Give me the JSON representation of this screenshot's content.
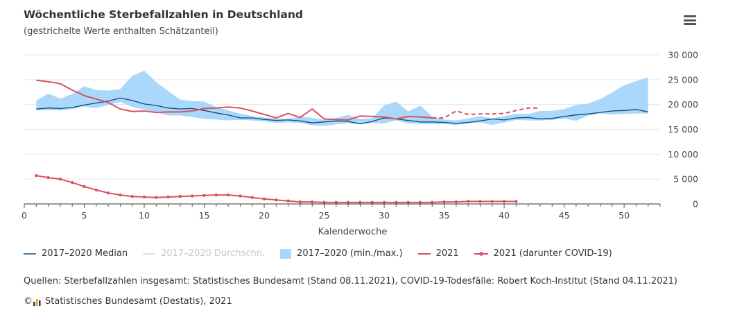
{
  "header": {
    "title": "Wöchentliche Sterbefallzahlen in Deutschland",
    "subtitle": "(gestrichelte Werte enthalten Schätzanteil)",
    "menu_icon": "hamburger-menu-icon"
  },
  "chart_data": {
    "type": "line",
    "xlabel": "Kalenderwoche",
    "ylabel": "",
    "xlim": [
      0,
      53
    ],
    "ylim": [
      0,
      30000
    ],
    "x_ticks": [
      0,
      5,
      10,
      15,
      20,
      25,
      30,
      35,
      40,
      45,
      50
    ],
    "y_ticks": [
      0,
      5000,
      10000,
      15000,
      20000,
      25000,
      30000
    ],
    "y_tick_labels": [
      "0",
      "5 000",
      "10 000",
      "15 000",
      "20 000",
      "25 000",
      "30 000"
    ],
    "legend_position": "bottom",
    "grid": true,
    "weeks": [
      1,
      2,
      3,
      4,
      5,
      6,
      7,
      8,
      9,
      10,
      11,
      12,
      13,
      14,
      15,
      16,
      17,
      18,
      19,
      20,
      21,
      22,
      23,
      24,
      25,
      26,
      27,
      28,
      29,
      30,
      31,
      32,
      33,
      34,
      35,
      36,
      37,
      38,
      39,
      40,
      41,
      42,
      43,
      44,
      45,
      46,
      47,
      48,
      49,
      50,
      51,
      52
    ],
    "series": [
      {
        "name": "2017–2020 Median",
        "color": "#0b4a7a",
        "values": [
          19100,
          19300,
          19200,
          19400,
          19900,
          20300,
          20700,
          21300,
          20800,
          20100,
          19800,
          19300,
          19100,
          19200,
          18800,
          18300,
          17900,
          17300,
          17300,
          17000,
          16800,
          16900,
          16700,
          16300,
          16500,
          16700,
          16600,
          16100,
          16600,
          17300,
          17100,
          16800,
          16500,
          16500,
          16400,
          16200,
          16400,
          16700,
          17100,
          16900,
          17300,
          17400,
          17100,
          17200,
          17600,
          17900,
          18100,
          18400,
          18700,
          18800,
          19000,
          18500
        ]
      },
      {
        "name": "2017–2020 Durchschn.",
        "color": "#c8c8c8",
        "hidden": true,
        "values": []
      },
      {
        "name": "2017–2020 (min./max.)",
        "color": "#a9d8fa",
        "min": [
          18800,
          18900,
          18800,
          19100,
          19600,
          19300,
          19900,
          20500,
          19500,
          19000,
          18400,
          17800,
          17800,
          17500,
          17100,
          17000,
          16800,
          16900,
          16800,
          16600,
          16300,
          16400,
          16300,
          15800,
          15700,
          16000,
          16200,
          16000,
          16300,
          16200,
          16800,
          16200,
          16100,
          16000,
          16100,
          15900,
          16200,
          16400,
          15900,
          16400,
          16900,
          16800,
          16800,
          16900,
          17200,
          16700,
          17800,
          18200,
          18000,
          18100,
          18200,
          18200
        ],
        "max": [
          20800,
          22200,
          21200,
          22100,
          23700,
          22900,
          22800,
          23100,
          25800,
          26800,
          24500,
          22700,
          21000,
          20700,
          20600,
          19500,
          18800,
          18200,
          17700,
          17400,
          17200,
          17100,
          17600,
          17300,
          16900,
          17300,
          17900,
          17100,
          17300,
          19800,
          20600,
          18600,
          19800,
          17600,
          17000,
          16800,
          17200,
          17700,
          17200,
          17700,
          18100,
          18100,
          18700,
          18700,
          19100,
          19900,
          20200,
          21100,
          22400,
          23900,
          24700,
          25500
        ]
      },
      {
        "name": "2021",
        "color": "#d9505f",
        "values": [
          24900,
          24600,
          24200,
          22900,
          21800,
          21100,
          20400,
          19100,
          18600,
          18700,
          18400,
          18500,
          18500,
          18700,
          19200,
          19300,
          19500,
          19300,
          18700,
          18000,
          17300,
          18200,
          17400,
          19100,
          17100,
          17000,
          16900,
          17700,
          17600,
          17500,
          17100,
          17600,
          17500,
          17300,
          17300,
          18700,
          18000,
          18100,
          18100,
          18200,
          18800,
          19300,
          19300
        ],
        "estimated_from_week": 34
      },
      {
        "name": "2021 (darunter COVID-19)",
        "color": "#d9505f",
        "values": [
          5700,
          5300,
          5000,
          4300,
          3500,
          2800,
          2200,
          1800,
          1500,
          1400,
          1300,
          1400,
          1500,
          1600,
          1700,
          1800,
          1800,
          1600,
          1300,
          1000,
          800,
          600,
          400,
          400,
          300,
          300,
          300,
          300,
          300,
          300,
          300,
          300,
          300,
          300,
          400,
          400,
          500,
          500,
          500,
          500,
          500
        ]
      }
    ]
  },
  "legend": {
    "items": [
      {
        "label": "2017–2020 Median",
        "kind": "line",
        "color": "#0b4a7a",
        "dim": false
      },
      {
        "label": "2017–2020 Durchschn.",
        "kind": "line",
        "color": "#d6d6d6",
        "dim": true
      },
      {
        "label": "2017–2020 (min./max.)",
        "kind": "area",
        "color": "#a9d8fa",
        "dim": false
      },
      {
        "label": "2021",
        "kind": "line",
        "color": "#d9505f",
        "dim": false
      },
      {
        "label": "2021 (darunter COVID-19)",
        "kind": "line-marker",
        "color": "#d9505f",
        "dim": false
      }
    ]
  },
  "footer": {
    "source": "Quellen: Sterbefallzahlen insgesamt: Statistisches Bundesamt (Stand 08.11.2021), COVID-19-Todesfälle: Robert Koch-Institut (Stand 04.11.2021)",
    "copyright": "Statistisches Bundesamt (Destatis), 2021",
    "copyright_symbol": "©",
    "logo_icon": "destatis-logo-icon"
  }
}
